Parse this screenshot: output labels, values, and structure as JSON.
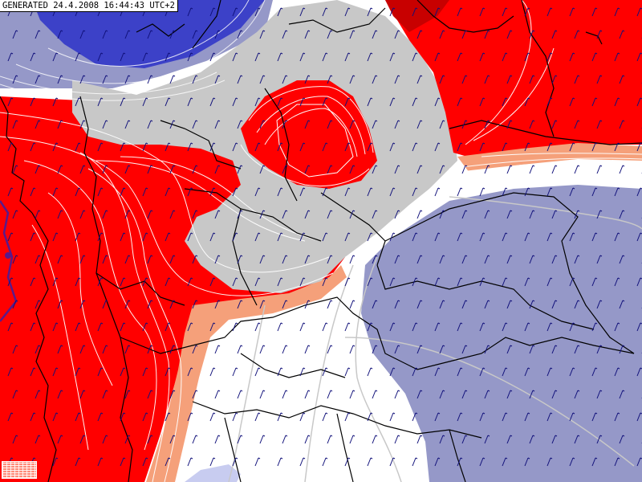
{
  "header": {
    "generated_stamp": "GENERATED 24.4.2008 16:44:43 UTC+2"
  },
  "map": {
    "layers": [
      {
        "name": "warm-zone",
        "color": "#ff0000"
      },
      {
        "name": "strong-warm-core",
        "color": "#c80000"
      },
      {
        "name": "transition-zone",
        "color": "#c8c8c8"
      },
      {
        "name": "light-warm-band",
        "color": "#f5a07a"
      },
      {
        "name": "neutral-zone",
        "color": "#ffffff"
      },
      {
        "name": "cool-zone",
        "color": "#9598c8"
      },
      {
        "name": "cold-zone",
        "color": "#3c41c8"
      },
      {
        "name": "pale-cold-patch",
        "color": "#c8ccf0"
      }
    ],
    "wind_barb_color": "#10107a",
    "border_color": "#000000",
    "isoline_color": "#ffffff"
  },
  "legend": {
    "icon": "color-scale-grid-icon"
  }
}
